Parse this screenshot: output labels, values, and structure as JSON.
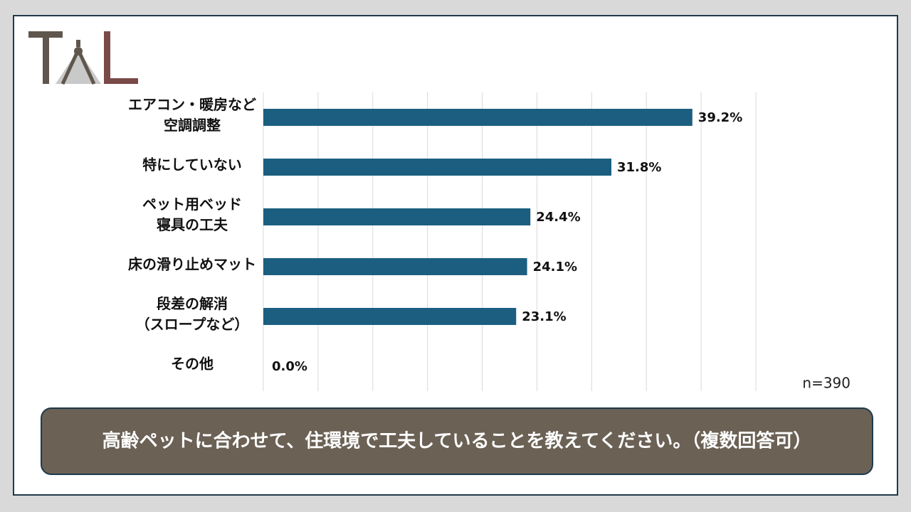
{
  "chart_data": {
    "type": "hbar",
    "question": "高齢ペットに合わせて、住環境で工夫していることを教えてください。（複数回答可）",
    "note": "n=390",
    "categories": [
      [
        "エアコン・暖房など",
        "空調調整"
      ],
      [
        "特にしていない"
      ],
      [
        "ペット用ベッド",
        "寝具の工夫"
      ],
      [
        "床の滑り止めマット"
      ],
      [
        "段差の解消",
        "（スロープなど）"
      ],
      [
        "その他"
      ]
    ],
    "values": [
      39.2,
      31.8,
      24.4,
      24.1,
      23.1,
      0.0
    ],
    "value_labels": [
      "39.2%",
      "31.8%",
      "24.4%",
      "24.1%",
      "23.1%",
      "0.0%"
    ],
    "color": "#1b5e80",
    "xlim": [
      0,
      45
    ],
    "xticks": [
      0,
      5,
      10,
      15,
      20,
      25,
      30,
      35,
      40,
      45
    ],
    "grid": true
  }
}
